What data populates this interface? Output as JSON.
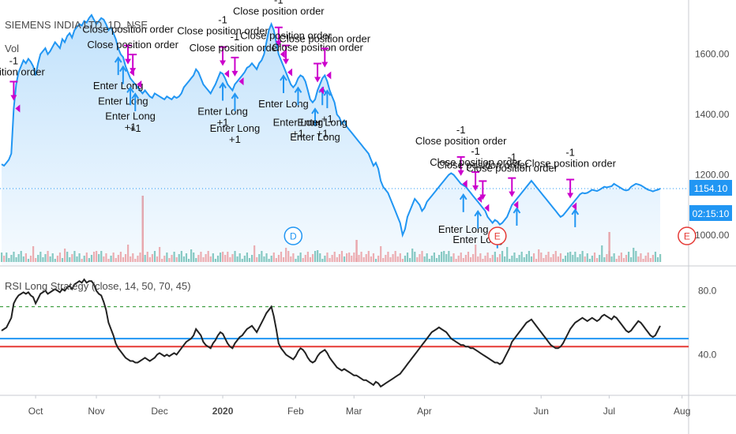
{
  "colors": {
    "price_line": "#2196f3",
    "area_fill": "#2196f3",
    "rsi_line": "#222222",
    "rsi_band_blue": "#2196f3",
    "rsi_band_red": "#e53935",
    "rsi_dashed_green": "#43a047",
    "entry_arrow": "#2196f3",
    "exit_arrow": "#cc00cc",
    "vol_up": "#76c2b5",
    "vol_down": "#f4a0a0",
    "badge_price": "#2196f3",
    "event_red": "#e53935"
  },
  "icons": {
    "entry": "up-arrow-icon",
    "exit": "down-arrow-icon",
    "trade_marker": "triangle-marker-icon",
    "dividend": "dividend-circle-icon",
    "earnings": "earnings-circle-icon"
  },
  "header": {
    "symbol_title": "SIEMENS INDIA LTD, 1D, NSE",
    "vol_label": "Vol",
    "rsi_title": "RSI Long Strategy (close, 14, 50, 70, 45)"
  },
  "price_badge": {
    "value": "1154.10",
    "countdown": "02:15:10"
  },
  "events": [
    {
      "label": "D",
      "kind": "dividend",
      "x_index": 120
    },
    {
      "label": "E",
      "kind": "earnings",
      "x_index": 204
    },
    {
      "label": "E",
      "kind": "earnings",
      "x_index": 282
    }
  ],
  "chart_data": [
    {
      "type": "area",
      "name": "price",
      "ylim": [
        900,
        1780
      ],
      "y_ticks": [
        1000,
        1200,
        1400,
        1600
      ],
      "y_tick_labels": [
        "1000.00",
        "1200.00",
        "1400.00",
        "1600.00"
      ],
      "x_ticks": [
        {
          "label": "Oct",
          "index": 14
        },
        {
          "label": "Nov",
          "index": 39
        },
        {
          "label": "Dec",
          "index": 65
        },
        {
          "label": "2020",
          "index": 91
        },
        {
          "label": "Feb",
          "index": 121
        },
        {
          "label": "Mar",
          "index": 145
        },
        {
          "label": "Apr",
          "index": 174
        },
        {
          "label": "Jun",
          "index": 222
        },
        {
          "label": "Jul",
          "index": 250
        },
        {
          "label": "Aug",
          "index": 280
        }
      ],
      "values": [
        1235,
        1230,
        1240,
        1250,
        1270,
        1420,
        1500,
        1540,
        1560,
        1580,
        1570,
        1585,
        1575,
        1560,
        1530,
        1570,
        1600,
        1610,
        1620,
        1600,
        1610,
        1625,
        1640,
        1630,
        1620,
        1650,
        1640,
        1660,
        1670,
        1655,
        1680,
        1690,
        1700,
        1695,
        1710,
        1705,
        1720,
        1730,
        1715,
        1700,
        1710,
        1720,
        1715,
        1700,
        1680,
        1690,
        1670,
        1650,
        1620,
        1600,
        1590,
        1560,
        1540,
        1520,
        1510,
        1500,
        1490,
        1480,
        1470,
        1480,
        1470,
        1460,
        1455,
        1470,
        1465,
        1460,
        1455,
        1450,
        1460,
        1455,
        1450,
        1460,
        1455,
        1460,
        1470,
        1490,
        1500,
        1510,
        1520,
        1530,
        1550,
        1540,
        1520,
        1500,
        1490,
        1480,
        1470,
        1485,
        1500,
        1520,
        1540,
        1535,
        1520,
        1500,
        1490,
        1480,
        1500,
        1510,
        1520,
        1530,
        1540,
        1555,
        1560,
        1570,
        1560,
        1550,
        1570,
        1580,
        1600,
        1640,
        1680,
        1700,
        1680,
        1640,
        1600,
        1580,
        1560,
        1540,
        1520,
        1500,
        1490,
        1500,
        1520,
        1530,
        1525,
        1510,
        1480,
        1450,
        1440,
        1450,
        1480,
        1500,
        1520,
        1530,
        1510,
        1480,
        1460,
        1440,
        1400,
        1390,
        1370,
        1380,
        1360,
        1350,
        1340,
        1330,
        1320,
        1310,
        1300,
        1290,
        1280,
        1270,
        1250,
        1230,
        1240,
        1220,
        1180,
        1160,
        1150,
        1140,
        1120,
        1100,
        1080,
        1060,
        1040,
        1000,
        1020,
        1060,
        1080,
        1100,
        1120,
        1110,
        1100,
        1080,
        1090,
        1110,
        1120,
        1130,
        1140,
        1150,
        1160,
        1170,
        1180,
        1190,
        1200,
        1205,
        1200,
        1190,
        1180,
        1170,
        1165,
        1160,
        1150,
        1140,
        1130,
        1120,
        1110,
        1100,
        1090,
        1080,
        1060,
        1050,
        1040,
        1050,
        1045,
        1035,
        1040,
        1050,
        1060,
        1080,
        1100,
        1110,
        1120,
        1130,
        1140,
        1150,
        1160,
        1170,
        1180,
        1170,
        1160,
        1150,
        1140,
        1130,
        1120,
        1110,
        1100,
        1090,
        1080,
        1070,
        1060,
        1065,
        1075,
        1085,
        1095,
        1105,
        1115,
        1125,
        1135,
        1140,
        1138,
        1140,
        1145,
        1150,
        1148,
        1146,
        1150,
        1155,
        1160,
        1158,
        1160,
        1162,
        1170,
        1165,
        1160,
        1155,
        1150,
        1148,
        1150,
        1160,
        1165,
        1170,
        1168,
        1165,
        1160,
        1155,
        1150,
        1148,
        1145,
        1148,
        1150,
        1154
      ]
    },
    {
      "type": "line",
      "name": "RSI",
      "ylim": [
        15,
        95
      ],
      "y_ticks": [
        40,
        80
      ],
      "y_tick_labels": [
        "40.0",
        "80.0"
      ],
      "levels": {
        "upper_dashed": 70,
        "blue": 50,
        "red": 45
      },
      "values": [
        55,
        56,
        57,
        60,
        63,
        72,
        75,
        77,
        78,
        79,
        78,
        79,
        77,
        76,
        72,
        75,
        78,
        79,
        80,
        78,
        79,
        80,
        81,
        80,
        79,
        81,
        80,
        82,
        83,
        81,
        84,
        85,
        86,
        85,
        87,
        85,
        86,
        86,
        84,
        80,
        78,
        77,
        73,
        68,
        60,
        56,
        52,
        47,
        44,
        42,
        40,
        38,
        37,
        36,
        36,
        35,
        35,
        36,
        37,
        38,
        37,
        36,
        37,
        38,
        40,
        41,
        40,
        39,
        40,
        39,
        40,
        41,
        40,
        42,
        44,
        46,
        48,
        49,
        50,
        52,
        56,
        54,
        52,
        48,
        46,
        45,
        44,
        47,
        49,
        52,
        54,
        53,
        50,
        47,
        45,
        44,
        47,
        49,
        51,
        52,
        54,
        56,
        57,
        58,
        56,
        54,
        57,
        60,
        63,
        66,
        68,
        70,
        64,
        56,
        47,
        44,
        42,
        40,
        39,
        38,
        37,
        39,
        42,
        44,
        43,
        41,
        38,
        36,
        35,
        36,
        39,
        41,
        42,
        43,
        41,
        38,
        36,
        34,
        32,
        31,
        30,
        31,
        30,
        29,
        28,
        27,
        27,
        26,
        25,
        24,
        24,
        23,
        22,
        21,
        23,
        22,
        20,
        21,
        22,
        23,
        24,
        25,
        26,
        27,
        28,
        30,
        32,
        34,
        36,
        38,
        40,
        42,
        44,
        46,
        48,
        50,
        52,
        54,
        55,
        56,
        57,
        56,
        55,
        54,
        52,
        50,
        49,
        48,
        47,
        46,
        46,
        45,
        45,
        44,
        44,
        43,
        42,
        41,
        40,
        39,
        38,
        37,
        36,
        35,
        35,
        34,
        35,
        38,
        41,
        44,
        48,
        50,
        52,
        54,
        56,
        58,
        60,
        61,
        62,
        60,
        58,
        56,
        54,
        52,
        50,
        48,
        46,
        45,
        44,
        44,
        45,
        47,
        50,
        53,
        56,
        58,
        60,
        61,
        62,
        63,
        62,
        61,
        62,
        63,
        62,
        61,
        62,
        64,
        65,
        64,
        63,
        62,
        64,
        63,
        61,
        59,
        57,
        55,
        54,
        55,
        57,
        59,
        61,
        60,
        58,
        56,
        54,
        52,
        51,
        52,
        55,
        58
      ]
    }
  ],
  "trades": {
    "entries": [
      {
        "index": 48,
        "labels": [
          "Enter Long"
        ]
      },
      {
        "index": 50,
        "labels": [
          "Enter Long"
        ]
      },
      {
        "index": 53,
        "labels": [
          "Enter Long",
          "+1"
        ]
      },
      {
        "index": 55,
        "labels": [
          "+1"
        ]
      },
      {
        "index": 91,
        "labels": [
          "Enter Long",
          "+1"
        ]
      },
      {
        "index": 96,
        "labels": [
          "Enter Long",
          "+1"
        ]
      },
      {
        "index": 116,
        "labels": [
          "Enter Long"
        ]
      },
      {
        "index": 122,
        "labels": [
          "Enter Long",
          "+1"
        ]
      },
      {
        "index": 129,
        "labels": [
          "Enter Long"
        ]
      },
      {
        "index": 132,
        "labels": [
          "Enter Long",
          "+1"
        ]
      },
      {
        "index": 134,
        "labels": [
          "+1"
        ]
      },
      {
        "index": 190,
        "labels": [
          "Enter Long"
        ]
      },
      {
        "index": 196,
        "labels": [
          "Enter Long"
        ]
      },
      {
        "index": 204,
        "labels": []
      },
      {
        "index": 212,
        "labels": []
      },
      {
        "index": 236,
        "labels": []
      }
    ],
    "exits": [
      {
        "index": 5,
        "labels": [
          "-1",
          "position order"
        ]
      },
      {
        "index": 52,
        "labels": [
          "Close position order"
        ]
      },
      {
        "index": 54,
        "labels": [
          "Close position order"
        ]
      },
      {
        "index": 91,
        "labels": [
          "-1",
          "Close position order"
        ]
      },
      {
        "index": 96,
        "labels": [
          "-1",
          "Close position order"
        ]
      },
      {
        "index": 114,
        "labels": [
          "-1",
          "Close position order"
        ]
      },
      {
        "index": 117,
        "labels": [
          "Close position order"
        ]
      },
      {
        "index": 130,
        "labels": [
          "Close position order"
        ]
      },
      {
        "index": 133,
        "labels": [
          "Close position order"
        ]
      },
      {
        "index": 189,
        "labels": [
          "-1",
          "Close position order"
        ]
      },
      {
        "index": 195,
        "labels": [
          "-1",
          "Close position order"
        ]
      },
      {
        "index": 198,
        "labels": [
          "Close position order"
        ]
      },
      {
        "index": 210,
        "labels": [
          "-1",
          "Close position order"
        ]
      },
      {
        "index": 234,
        "labels": [
          "-1",
          "Close position order"
        ]
      }
    ],
    "triangles": [
      5,
      52,
      55,
      91,
      97,
      114,
      117,
      130,
      133,
      189,
      195,
      198,
      210,
      234
    ]
  }
}
